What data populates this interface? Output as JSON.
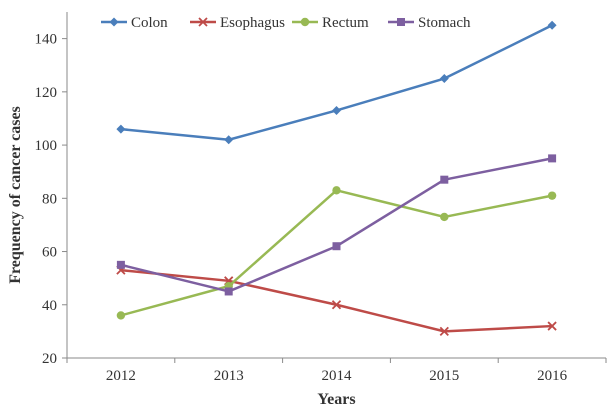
{
  "chart_data": {
    "type": "line",
    "title": "",
    "xlabel": "Years",
    "ylabel": "Frequency of cancer cases",
    "categories": [
      "2012",
      "2013",
      "2014",
      "2015",
      "2016"
    ],
    "ylim": [
      20,
      150
    ],
    "yticks": [
      20,
      40,
      60,
      80,
      100,
      120,
      140
    ],
    "grid": false,
    "legend_position": "top",
    "series": [
      {
        "name": "Colon",
        "values": [
          106,
          102,
          113,
          125,
          145
        ],
        "color": "#4a7ebb",
        "marker": "diamond"
      },
      {
        "name": "Esophagus",
        "values": [
          53,
          49,
          40,
          30,
          32
        ],
        "color": "#be4b48",
        "marker": "x"
      },
      {
        "name": "Rectum",
        "values": [
          36,
          47,
          83,
          73,
          81
        ],
        "color": "#98b954",
        "marker": "circle"
      },
      {
        "name": "Stomach",
        "values": [
          55,
          45,
          62,
          87,
          95
        ],
        "color": "#7d5fa0",
        "marker": "square"
      }
    ]
  }
}
